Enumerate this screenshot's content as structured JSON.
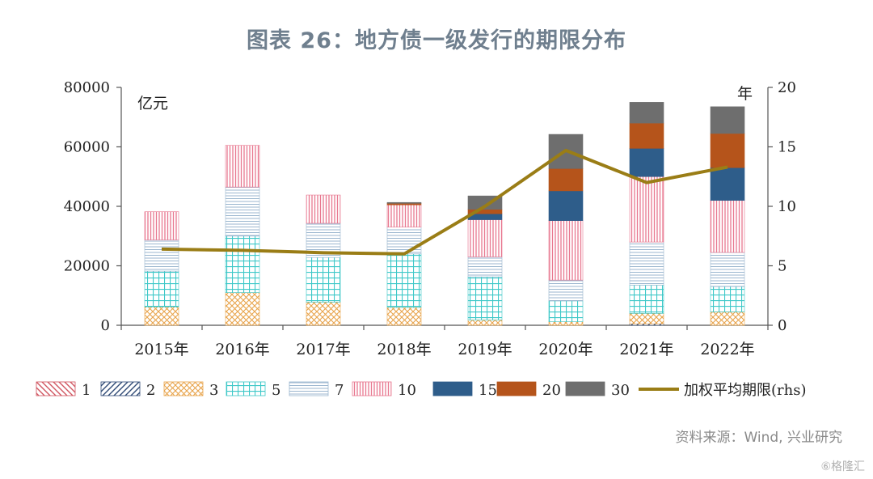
{
  "title": "图表 26：地方债一级发行的期限分布",
  "source": "资料来源：Wind, 兴业研究",
  "watermark": "⑥格隆汇",
  "chart_data": {
    "type": "bar",
    "stacked": true,
    "categories": [
      "2015年",
      "2016年",
      "2017年",
      "2018年",
      "2019年",
      "2020年",
      "2021年",
      "2022年"
    ],
    "y_left": {
      "unit": "亿元",
      "min": 0,
      "max": 80000,
      "ticks": [
        0,
        20000,
        40000,
        60000,
        80000
      ]
    },
    "y_right": {
      "unit": "年",
      "min": 0,
      "max": 20,
      "ticks": [
        0,
        5,
        10,
        15,
        20
      ]
    },
    "series": [
      {
        "name": "1",
        "pattern": "diag-down",
        "color": "#d0545f",
        "values": [
          0,
          0,
          0,
          0,
          0,
          0,
          0,
          0
        ]
      },
      {
        "name": "2",
        "pattern": "diag-up",
        "color": "#2f4a75",
        "values": [
          0,
          0,
          0,
          0,
          0,
          0,
          500,
          0
        ]
      },
      {
        "name": "3",
        "pattern": "cross",
        "color": "#e8a34a",
        "values": [
          6200,
          11000,
          7800,
          6000,
          1800,
          1200,
          3500,
          4500
        ]
      },
      {
        "name": "5",
        "pattern": "grid",
        "color": "#3ec8c8",
        "values": [
          12000,
          19000,
          15000,
          18000,
          14500,
          7000,
          9500,
          8500
        ]
      },
      {
        "name": "7",
        "pattern": "hlines",
        "color": "#9bb6cf",
        "values": [
          10500,
          16500,
          11500,
          9000,
          6700,
          7000,
          14500,
          11500
        ]
      },
      {
        "name": "10",
        "pattern": "vlines",
        "color": "#e87890",
        "values": [
          9500,
          14000,
          9500,
          7500,
          12500,
          20000,
          22000,
          17500
        ]
      },
      {
        "name": "15",
        "pattern": "solid",
        "color": "#2e5d8a",
        "values": [
          0,
          0,
          0,
          0,
          2000,
          10000,
          9500,
          11000
        ]
      },
      {
        "name": "20",
        "pattern": "solid",
        "color": "#b5541b",
        "values": [
          0,
          0,
          0,
          500,
          1500,
          7500,
          8500,
          11500
        ]
      },
      {
        "name": "30",
        "pattern": "solid",
        "color": "#6e6e6e",
        "values": [
          0,
          0,
          0,
          300,
          4500,
          11500,
          7000,
          9000
        ]
      }
    ],
    "line": {
      "name": "加权平均期限(rhs)",
      "axis": "right",
      "color": "#9a7d16",
      "values": [
        6.4,
        6.3,
        6.1,
        6.0,
        10.0,
        14.7,
        12.0,
        13.3
      ]
    },
    "grid": false,
    "legend": "bottom"
  }
}
